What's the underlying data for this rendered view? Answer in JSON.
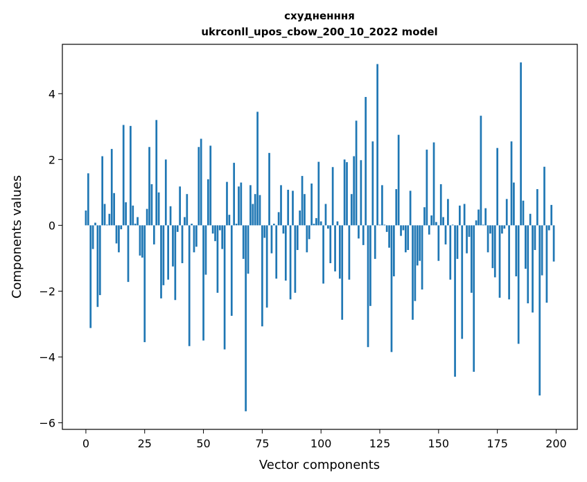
{
  "chart_data": {
    "type": "bar",
    "title_line1": "схудненння",
    "title_line2": "ukrconll_upos_cbow_200_10_2022 model",
    "xlabel": "Vector components",
    "ylabel": "Components values",
    "xlim": [
      -10,
      209
    ],
    "ylim": [
      -6.2,
      5.5
    ],
    "x_ticks": [
      0,
      25,
      50,
      75,
      100,
      125,
      150,
      175,
      200
    ],
    "x_tick_labels": [
      "0",
      "25",
      "50",
      "75",
      "100",
      "125",
      "150",
      "175",
      "200"
    ],
    "y_ticks": [
      -6,
      -4,
      -2,
      0,
      2,
      4
    ],
    "y_tick_labels": [
      "−6",
      "−4",
      "−2",
      "0",
      "2",
      "4"
    ],
    "grid": false,
    "bar_color": "#1f77b4",
    "values": [
      0.45,
      1.58,
      -3.12,
      -0.72,
      0.08,
      -2.48,
      -2.12,
      2.1,
      0.65,
      0.02,
      0.35,
      2.32,
      0.98,
      -0.55,
      -0.82,
      -0.12,
      3.05,
      0.7,
      -1.72,
      3.02,
      0.6,
      0.05,
      0.25,
      -0.92,
      -0.98,
      -3.55,
      0.5,
      2.38,
      1.25,
      -0.58,
      3.2,
      1.0,
      -2.22,
      -1.82,
      2.0,
      -1.65,
      0.58,
      -1.25,
      -2.27,
      -0.2,
      1.18,
      -1.15,
      0.25,
      0.95,
      -3.67,
      0.05,
      -0.82,
      -0.65,
      2.38,
      2.63,
      -3.5,
      -1.5,
      1.4,
      2.42,
      -0.25,
      -0.48,
      -2.05,
      -0.15,
      -0.72,
      -3.77,
      1.32,
      0.32,
      -2.75,
      1.9,
      0.05,
      1.18,
      1.3,
      -1.02,
      -5.65,
      -1.47,
      1.22,
      0.65,
      0.95,
      3.45,
      0.92,
      -3.07,
      -0.38,
      -2.5,
      2.2,
      -0.85,
      0.05,
      -1.62,
      0.4,
      1.22,
      -0.25,
      -1.68,
      1.08,
      -2.25,
      1.05,
      -2.05,
      -0.75,
      0.45,
      1.5,
      0.95,
      -0.82,
      -0.42,
      1.27,
      0.05,
      0.22,
      1.93,
      0.12,
      -1.77,
      0.65,
      -0.1,
      -1.15,
      1.77,
      -1.4,
      0.12,
      -1.62,
      -2.87,
      2.0,
      1.92,
      -1.65,
      0.95,
      2.1,
      3.18,
      -0.4,
      1.98,
      -0.6,
      3.9,
      -3.7,
      -2.45,
      2.55,
      -1.02,
      4.9,
      0.02,
      1.22,
      0.02,
      -0.2,
      -0.68,
      -3.85,
      -1.55,
      1.1,
      2.75,
      -0.32,
      -0.15,
      -0.82,
      -0.75,
      1.05,
      -2.87,
      -2.3,
      -1.22,
      -1.08,
      -1.95,
      0.55,
      2.3,
      -0.28,
      0.3,
      2.52,
      0.1,
      -1.08,
      1.25,
      0.25,
      -0.58,
      0.8,
      -1.65,
      0.02,
      -4.6,
      -1.02,
      0.6,
      -3.45,
      0.65,
      -0.85,
      -0.35,
      -2.05,
      -4.45,
      0.15,
      0.48,
      3.33,
      0.02,
      0.52,
      -0.82,
      -0.25,
      -1.3,
      -1.58,
      2.35,
      -2.2,
      -0.25,
      -0.1,
      0.8,
      -2.25,
      2.55,
      1.3,
      -1.55,
      -3.6,
      4.95,
      0.75,
      -1.32,
      -2.37,
      0.35,
      -2.65,
      -0.75,
      1.1,
      -5.17,
      -1.52,
      1.78,
      -2.35,
      -0.15,
      0.62,
      -1.1
    ]
  }
}
